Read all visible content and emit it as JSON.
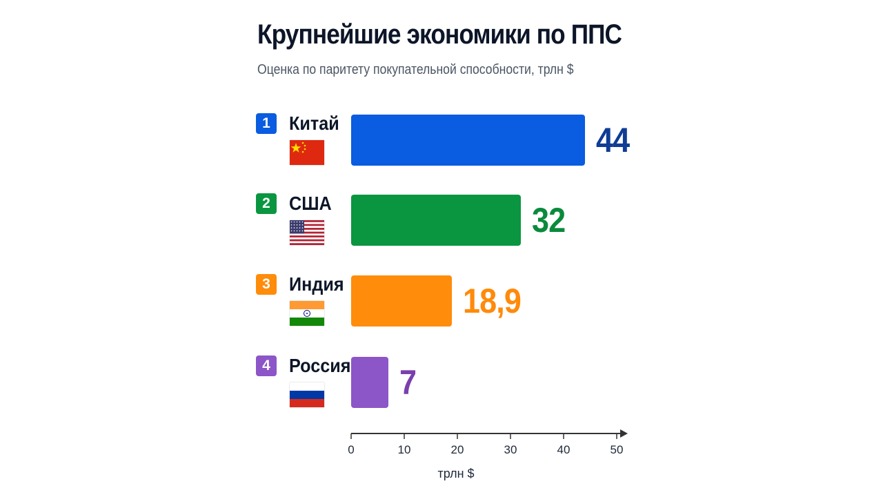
{
  "chart_data": {
    "type": "bar",
    "orientation": "horizontal",
    "title": "Крупнейшие экономики по ППС",
    "subtitle": "Оценка по паритету покупательной способности, трлн $",
    "xlabel": "трлн $",
    "xlim": [
      0,
      50
    ],
    "ticks": [
      "0",
      "10",
      "20",
      "30",
      "40",
      "50"
    ],
    "grid": false,
    "categories": [
      "Китай",
      "США",
      "Индия",
      "Россия"
    ],
    "ranks": [
      "1",
      "2",
      "3",
      "4"
    ],
    "values": [
      44,
      32,
      18.9,
      7
    ],
    "value_labels": [
      "44",
      "32",
      "18,9",
      "7"
    ],
    "colors": [
      "#0a5ce0",
      "#0a9640",
      "#ff8c0a",
      "#8c55c8"
    ],
    "label_colors": [
      "#0f3c94",
      "#0a8a3c",
      "#ff8a0a",
      "#7a3fae"
    ],
    "flags": [
      "china-flag-icon",
      "usa-flag-icon",
      "india-flag-icon",
      "russia-flag-icon"
    ]
  }
}
